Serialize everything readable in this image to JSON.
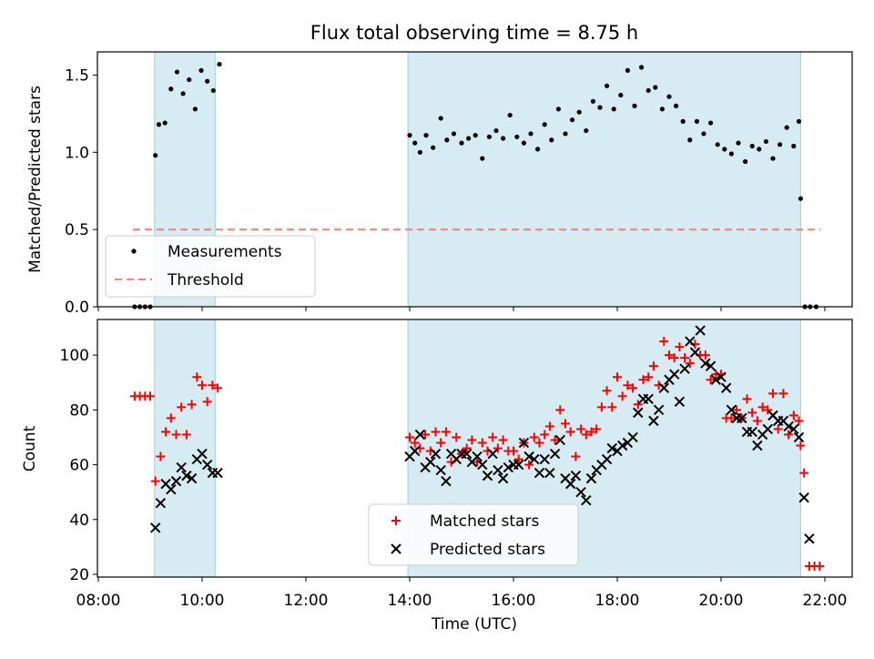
{
  "figure": {
    "title": "Flux total observing time = 8.75 h"
  },
  "chart_data": [
    {
      "type": "scatter",
      "title": "Flux total observing time = 8.75 h",
      "xlabel": "",
      "ylabel": "Matched/Predicted stars",
      "xlim": [
        "08:00",
        "22:00"
      ],
      "ylim": [
        0,
        1.65
      ],
      "yticks": [
        "0.0",
        "0.5",
        "1.0",
        "1.5"
      ],
      "shaded_intervals": [
        [
          "09:05",
          "10:15"
        ],
        [
          "13:58",
          "21:32"
        ]
      ],
      "legend": {
        "placement": "lower-left",
        "entries": [
          "Measurements",
          "Threshold"
        ]
      },
      "series": [
        {
          "name": "Measurements",
          "marker": "dot",
          "color": "#000000",
          "x": [
            "08:42",
            "08:48",
            "08:54",
            "09:00",
            "09:06",
            "09:10",
            "09:17",
            "09:24",
            "09:31",
            "09:38",
            "09:45",
            "09:52",
            "09:59",
            "10:06",
            "10:13",
            "10:20",
            "14:00",
            "14:06",
            "14:12",
            "14:19",
            "14:27",
            "14:36",
            "14:43",
            "14:51",
            "15:00",
            "15:08",
            "15:16",
            "15:24",
            "15:32",
            "15:40",
            "15:48",
            "15:56",
            "16:04",
            "16:12",
            "16:20",
            "16:28",
            "16:36",
            "16:44",
            "16:52",
            "17:00",
            "17:08",
            "17:16",
            "17:24",
            "17:32",
            "17:40",
            "17:48",
            "17:56",
            "18:04",
            "18:12",
            "18:20",
            "18:28",
            "18:36",
            "18:44",
            "18:52",
            "19:00",
            "19:08",
            "19:16",
            "19:24",
            "19:32",
            "19:40",
            "19:48",
            "19:56",
            "20:04",
            "20:12",
            "20:20",
            "20:28",
            "20:36",
            "20:44",
            "20:52",
            "21:00",
            "21:08",
            "21:16",
            "21:24",
            "21:30",
            "21:32",
            "21:37",
            "21:43",
            "21:50"
          ],
          "y": [
            0,
            0,
            0,
            0,
            0.98,
            1.18,
            1.19,
            1.41,
            1.52,
            1.38,
            1.47,
            1.28,
            1.53,
            1.46,
            1.4,
            1.57,
            1.11,
            1.06,
            1.0,
            1.11,
            1.03,
            1.22,
            1.08,
            1.12,
            1.06,
            1.09,
            1.11,
            0.96,
            1.1,
            1.14,
            1.09,
            1.24,
            1.1,
            1.06,
            1.12,
            1.02,
            1.18,
            1.08,
            1.28,
            1.12,
            1.21,
            1.26,
            1.14,
            1.33,
            1.29,
            1.43,
            1.28,
            1.37,
            1.53,
            1.3,
            1.55,
            1.4,
            1.42,
            1.28,
            1.36,
            1.3,
            1.2,
            1.08,
            1.2,
            1.12,
            1.19,
            1.05,
            1.02,
            0.99,
            1.06,
            0.94,
            1.04,
            1.02,
            1.07,
            0.96,
            1.05,
            1.16,
            1.04,
            1.2,
            0.7,
            0,
            0,
            0
          ]
        },
        {
          "name": "Threshold",
          "style": "dashed-line",
          "color": "#ff7f7f",
          "x": [
            "08:40",
            "21:55"
          ],
          "y": [
            0.5,
            0.5
          ]
        }
      ]
    },
    {
      "type": "scatter",
      "xlabel": "Time (UTC)",
      "ylabel": "Count",
      "xlim": [
        "08:00",
        "22:00"
      ],
      "xticks": [
        "08:00",
        "10:00",
        "12:00",
        "14:00",
        "16:00",
        "18:00",
        "20:00",
        "22:00"
      ],
      "ylim": [
        19,
        113
      ],
      "yticks": [
        "20",
        "40",
        "60",
        "80",
        "100"
      ],
      "shaded_intervals": [
        [
          "09:05",
          "10:15"
        ],
        [
          "13:58",
          "21:32"
        ]
      ],
      "legend": {
        "placement": "lower-center",
        "entries": [
          "Matched stars",
          "Predicted stars"
        ]
      },
      "series": [
        {
          "name": "Matched stars",
          "marker": "plus",
          "color": "#ff0000",
          "x": [
            "08:42",
            "08:48",
            "08:54",
            "09:00",
            "09:06",
            "09:12",
            "09:18",
            "09:24",
            "09:30",
            "09:36",
            "09:42",
            "09:48",
            "09:54",
            "10:00",
            "10:06",
            "10:12",
            "10:18",
            "14:00",
            "14:06",
            "14:12",
            "14:18",
            "14:24",
            "14:30",
            "14:36",
            "14:42",
            "14:48",
            "14:54",
            "15:00",
            "15:06",
            "15:12",
            "15:18",
            "15:24",
            "15:30",
            "15:36",
            "15:42",
            "15:48",
            "15:54",
            "16:00",
            "16:06",
            "16:12",
            "16:18",
            "16:24",
            "16:30",
            "16:36",
            "16:42",
            "16:48",
            "16:54",
            "17:00",
            "17:06",
            "17:12",
            "17:18",
            "17:24",
            "17:30",
            "17:36",
            "17:42",
            "17:48",
            "17:54",
            "18:00",
            "18:06",
            "18:12",
            "18:18",
            "18:24",
            "18:30",
            "18:36",
            "18:42",
            "18:48",
            "18:54",
            "19:00",
            "19:06",
            "19:12",
            "19:18",
            "19:24",
            "19:30",
            "19:36",
            "19:42",
            "19:48",
            "19:54",
            "20:00",
            "20:06",
            "20:12",
            "20:18",
            "20:24",
            "20:30",
            "20:36",
            "20:42",
            "20:48",
            "20:54",
            "21:00",
            "21:06",
            "21:12",
            "21:18",
            "21:24",
            "21:30",
            "21:32",
            "21:36",
            "21:42",
            "21:48",
            "21:54"
          ],
          "y": [
            85,
            85,
            85,
            85,
            54,
            63,
            72,
            77,
            71,
            81,
            71,
            82,
            92,
            89,
            83,
            89,
            88,
            70,
            68,
            66,
            71,
            65,
            72,
            68,
            72,
            61,
            70,
            64,
            66,
            69,
            61,
            68,
            65,
            70,
            66,
            69,
            65,
            65,
            62,
            68,
            60,
            70,
            68,
            71,
            74,
            69,
            80,
            75,
            72,
            63,
            73,
            71,
            72,
            73,
            81,
            87,
            81,
            92,
            85,
            89,
            88,
            82,
            91,
            92,
            96,
            89,
            105,
            100,
            99,
            103,
            99,
            97,
            104,
            100,
            100,
            91,
            93,
            93,
            77,
            77,
            80,
            77,
            84,
            79,
            76,
            81,
            80,
            86,
            73,
            86,
            71,
            78,
            76,
            67,
            57,
            23,
            23,
            23
          ]
        },
        {
          "name": "Predicted stars",
          "marker": "x",
          "color": "#000000",
          "x": [
            "09:06",
            "09:12",
            "09:18",
            "09:24",
            "09:30",
            "09:36",
            "09:42",
            "09:48",
            "09:54",
            "10:00",
            "10:06",
            "10:12",
            "10:18",
            "14:00",
            "14:06",
            "14:12",
            "14:18",
            "14:24",
            "14:30",
            "14:36",
            "14:42",
            "14:48",
            "14:54",
            "15:00",
            "15:06",
            "15:12",
            "15:18",
            "15:24",
            "15:30",
            "15:36",
            "15:42",
            "15:48",
            "15:54",
            "16:00",
            "16:06",
            "16:12",
            "16:18",
            "16:24",
            "16:30",
            "16:36",
            "16:42",
            "16:48",
            "16:54",
            "17:00",
            "17:06",
            "17:12",
            "17:18",
            "17:24",
            "17:30",
            "17:36",
            "17:42",
            "17:48",
            "17:54",
            "18:00",
            "18:06",
            "18:12",
            "18:18",
            "18:24",
            "18:30",
            "18:36",
            "18:42",
            "18:48",
            "18:54",
            "19:00",
            "19:06",
            "19:12",
            "19:18",
            "19:24",
            "19:30",
            "19:36",
            "19:42",
            "19:48",
            "19:54",
            "20:00",
            "20:06",
            "20:12",
            "20:18",
            "20:24",
            "20:30",
            "20:36",
            "20:42",
            "20:48",
            "20:54",
            "21:00",
            "21:06",
            "21:12",
            "21:18",
            "21:24",
            "21:30",
            "21:36",
            "21:42"
          ],
          "y": [
            37,
            46,
            53,
            51,
            54,
            59,
            56,
            55,
            62,
            64,
            60,
            57,
            57,
            63,
            65,
            71,
            59,
            61,
            64,
            58,
            54,
            64,
            62,
            64,
            64,
            61,
            63,
            60,
            56,
            64,
            58,
            55,
            59,
            60,
            60,
            68,
            63,
            62,
            57,
            62,
            57,
            64,
            69,
            55,
            53,
            56,
            50,
            47,
            55,
            58,
            60,
            62,
            66,
            65,
            67,
            68,
            70,
            79,
            84,
            84,
            76,
            80,
            88,
            91,
            93,
            83,
            95,
            105,
            101,
            109,
            97,
            96,
            91,
            92,
            88,
            80,
            77,
            77,
            72,
            72,
            67,
            71,
            73,
            78,
            76,
            76,
            74,
            73,
            70,
            48,
            33
          ]
        }
      ]
    }
  ]
}
